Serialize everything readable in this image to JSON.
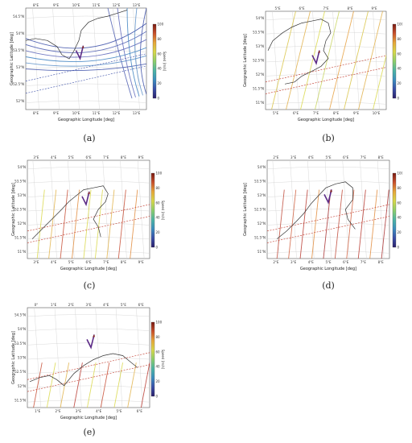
{
  "colorbar": {
    "label": "Speed [m/s]",
    "ticks": [
      "0",
      "20",
      "40",
      "60",
      "80",
      "100"
    ]
  },
  "panels": [
    {
      "id": "a",
      "caption": "(a)",
      "xlabel": "Geographic Longitude [deg]",
      "ylabel": "Geographic Latitude [deg]",
      "xticks": [
        "8°E",
        "9°E",
        "10°E",
        "11°E",
        "12°E",
        "13°E"
      ],
      "xticks_bottom": [
        "8°E",
        "9°E",
        "10°E",
        "11°E",
        "12°E",
        "13°E"
      ],
      "yticks": [
        "54.5°N",
        "54°N",
        "53.5°N",
        "53°N",
        "52.5°N",
        "52°N"
      ]
    },
    {
      "id": "b",
      "caption": "(b)",
      "xlabel": "Geographic Longitude [deg]",
      "ylabel": "Geographic Latitude [deg]",
      "xticks": [
        "5°E",
        "6°E",
        "7°E",
        "8°E",
        "9°E"
      ],
      "xticks_bottom": [
        "5°E",
        "6°E",
        "7°E",
        "8°E",
        "9°E",
        "10°E"
      ],
      "yticks": [
        "54°N",
        "53.5°N",
        "53°N",
        "52.5°N",
        "52°N",
        "51.5°N",
        "51°N"
      ]
    },
    {
      "id": "c",
      "caption": "(c)",
      "xlabel": "Geographic Longitude [deg]",
      "ylabel": "Geographic Latitude [deg]",
      "xticks": [
        "3°E",
        "4°E",
        "5°E",
        "6°E",
        "7°E",
        "8°E",
        "9°E"
      ],
      "xticks_bottom": [
        "3°E",
        "4°E",
        "5°E",
        "6°E",
        "7°E",
        "8°E",
        "9°E"
      ],
      "yticks": [
        "54°N",
        "53.5°N",
        "53°N",
        "52.5°N",
        "52°N",
        "51.5°N",
        "51°N"
      ]
    },
    {
      "id": "d",
      "caption": "(d)",
      "xlabel": "Geographic Longitude [deg]",
      "ylabel": "Geographic Latitude [deg]",
      "xticks": [
        "2°E",
        "3°E",
        "4°E",
        "5°E",
        "6°E",
        "7°E",
        "8°E"
      ],
      "xticks_bottom": [
        "2°E",
        "3°E",
        "4°E",
        "5°E",
        "6°E",
        "7°E",
        "8°E"
      ],
      "yticks": [
        "54°N",
        "53.5°N",
        "53°N",
        "52.5°N",
        "52°N",
        "51.5°N",
        "51°N"
      ]
    },
    {
      "id": "e",
      "caption": "(e)",
      "xlabel": "Geographic Longitude [deg]",
      "ylabel": "Geographic Latitude [deg]",
      "xticks": [
        "0°",
        "1°E",
        "2°E",
        "3°E",
        "4°E",
        "5°E",
        "6°E"
      ],
      "xticks_bottom": [
        "1°E",
        "2°E",
        "3°E",
        "4°E",
        "5°E",
        "6°E"
      ],
      "yticks": [
        "54.5°N",
        "54°N",
        "53.5°N",
        "53°N",
        "52.5°N",
        "52°N",
        "51.5°N"
      ]
    }
  ]
}
